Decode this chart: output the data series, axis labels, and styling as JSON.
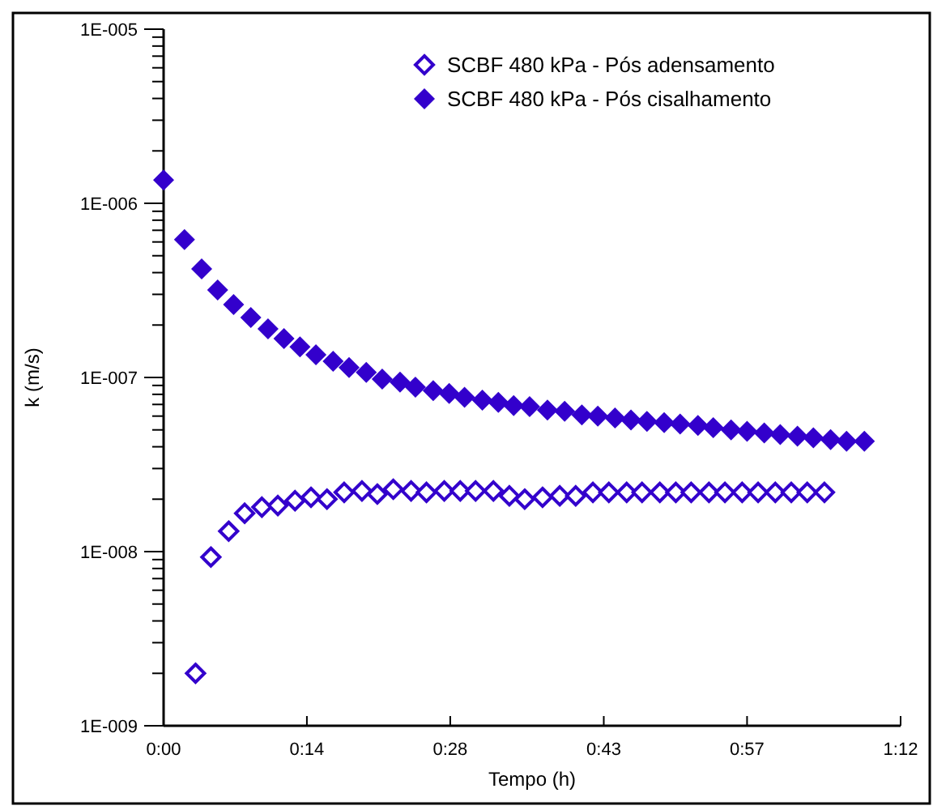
{
  "chart_data": {
    "type": "scatter",
    "xlabel": "Tempo (h)",
    "ylabel": "k (m/s)",
    "log": "y",
    "marker": "diamond",
    "legend": "top right",
    "grid": false,
    "xlim": [
      0,
      1.2
    ],
    "xticks": [
      {
        "value": 0,
        "label": "0:00"
      },
      {
        "value": 0.2333,
        "label": "0:14"
      },
      {
        "value": 0.4667,
        "label": "0:28"
      },
      {
        "value": 0.7167,
        "label": "0:43"
      },
      {
        "value": 0.95,
        "label": "0:57"
      },
      {
        "value": 1.2,
        "label": "1:12"
      }
    ],
    "ylim": [
      1e-09,
      1e-05
    ],
    "yticks": [
      {
        "value": 1e-09,
        "label": "1E-009"
      },
      {
        "value": 2e-09,
        "label": null
      },
      {
        "value": 3e-09,
        "label": null
      },
      {
        "value": 4e-09,
        "label": null
      },
      {
        "value": 5e-09,
        "label": null
      },
      {
        "value": 6e-09,
        "label": null
      },
      {
        "value": 7e-09,
        "label": null
      },
      {
        "value": 8e-09,
        "label": null
      },
      {
        "value": 9e-09,
        "label": null
      },
      {
        "value": 1e-08,
        "label": "1E-008"
      },
      {
        "value": 2e-08,
        "label": null
      },
      {
        "value": 3e-08,
        "label": null
      },
      {
        "value": 4e-08,
        "label": null
      },
      {
        "value": 5e-08,
        "label": null
      },
      {
        "value": 6e-08,
        "label": null
      },
      {
        "value": 7e-08,
        "label": null
      },
      {
        "value": 8e-08,
        "label": null
      },
      {
        "value": 9e-08,
        "label": null
      },
      {
        "value": 1e-07,
        "label": "1E-007"
      },
      {
        "value": 2e-07,
        "label": null
      },
      {
        "value": 3e-07,
        "label": null
      },
      {
        "value": 4e-07,
        "label": null
      },
      {
        "value": 5e-07,
        "label": null
      },
      {
        "value": 6e-07,
        "label": null
      },
      {
        "value": 7e-07,
        "label": null
      },
      {
        "value": 8e-07,
        "label": null
      },
      {
        "value": 9e-07,
        "label": null
      },
      {
        "value": 1e-06,
        "label": "1E-006"
      },
      {
        "value": 2e-06,
        "label": null
      },
      {
        "value": 3e-06,
        "label": null
      },
      {
        "value": 4e-06,
        "label": null
      },
      {
        "value": 5e-06,
        "label": null
      },
      {
        "value": 6e-06,
        "label": null
      },
      {
        "value": 7e-06,
        "label": null
      },
      {
        "value": 8e-06,
        "label": null
      },
      {
        "value": 9e-06,
        "label": null
      },
      {
        "value": 1e-05,
        "label": "1E-005"
      }
    ],
    "series": [
      {
        "name": "SCBF 480 kPa - Pós adensamento",
        "color": "#3300cc",
        "x": [
          0.052,
          0.077,
          0.106,
          0.132,
          0.16,
          0.186,
          0.214,
          0.24,
          0.266,
          0.294,
          0.323,
          0.348,
          0.374,
          0.403,
          0.428,
          0.457,
          0.483,
          0.508,
          0.537,
          0.563,
          0.588,
          0.617,
          0.645,
          0.671,
          0.699,
          0.725,
          0.754,
          0.779,
          0.808,
          0.834,
          0.859,
          0.888,
          0.914,
          0.942,
          0.968,
          0.996,
          1.022,
          1.048,
          1.076
        ],
        "values": [
          2e-09,
          9.3e-09,
          1.31e-08,
          1.66e-08,
          1.8e-08,
          1.84e-08,
          1.96e-08,
          2.05e-08,
          2e-08,
          2.19e-08,
          2.23e-08,
          2.14e-08,
          2.28e-08,
          2.23e-08,
          2.19e-08,
          2.23e-08,
          2.23e-08,
          2.23e-08,
          2.23e-08,
          2.09e-08,
          2e-08,
          2.05e-08,
          2.09e-08,
          2.09e-08,
          2.19e-08,
          2.19e-08,
          2.19e-08,
          2.19e-08,
          2.19e-08,
          2.19e-08,
          2.19e-08,
          2.19e-08,
          2.19e-08,
          2.19e-08,
          2.19e-08,
          2.19e-08,
          2.19e-08,
          2.19e-08,
          2.19e-08
        ]
      },
      {
        "name": "SCBF 480 kPa - Pós cisalhamento",
        "color": "#3300cc",
        "x": [
          0,
          0.034,
          0.062,
          0.088,
          0.114,
          0.142,
          0.17,
          0.196,
          0.222,
          0.248,
          0.276,
          0.302,
          0.33,
          0.356,
          0.385,
          0.41,
          0.439,
          0.465,
          0.49,
          0.519,
          0.545,
          0.57,
          0.596,
          0.625,
          0.653,
          0.681,
          0.707,
          0.735,
          0.761,
          0.787,
          0.815,
          0.841,
          0.87,
          0.895,
          0.924,
          0.95,
          0.978,
          1.004,
          1.032,
          1.058,
          1.086,
          1.112,
          1.141
        ],
        "values": [
          1.36e-06,
          6.2e-07,
          4.2e-07,
          3.18e-07,
          2.62e-07,
          2.21e-07,
          1.9e-07,
          1.67e-07,
          1.5e-07,
          1.35e-07,
          1.24e-07,
          1.14e-07,
          1.07e-07,
          9.8e-08,
          9.4e-08,
          8.8e-08,
          8.4e-08,
          8.1e-08,
          7.7e-08,
          7.4e-08,
          7.2e-08,
          6.9e-08,
          6.8e-08,
          6.5e-08,
          6.4e-08,
          6.1e-08,
          6e-08,
          5.85e-08,
          5.7e-08,
          5.6e-08,
          5.5e-08,
          5.4e-08,
          5.3e-08,
          5.15e-08,
          5e-08,
          4.9e-08,
          4.8e-08,
          4.7e-08,
          4.6e-08,
          4.5e-08,
          4.4e-08,
          4.3e-08,
          4.3e-08
        ]
      }
    ]
  }
}
